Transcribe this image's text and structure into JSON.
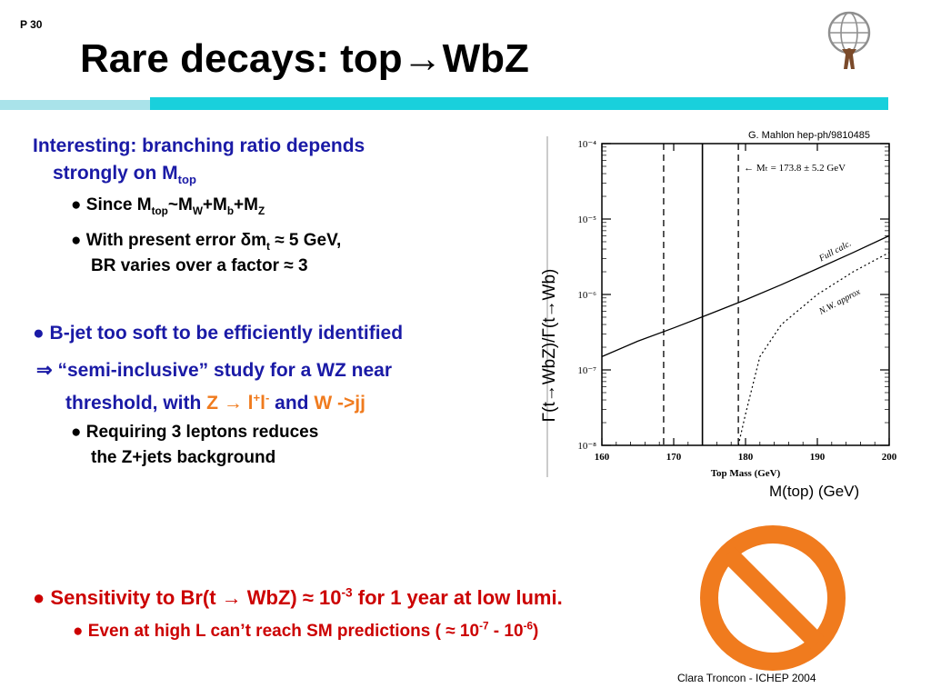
{
  "page_number": "P 30",
  "title": "Rare decays: top→WbZ",
  "bullet1": {
    "line1": "Interesting: branching ratio depends",
    "line2_main": "strongly on M",
    "line2_sub": "top",
    "sub1": {
      "bullet": "●",
      "text": "Since M",
      "sub_top": "top",
      "tilde": "~M",
      "sub_w": "W",
      "plus_b": "+M",
      "sub_b": "b",
      "plus_z": "+M",
      "sub_z": "Z"
    },
    "sub2": {
      "bullet": "●",
      "line1_a": "With present error ",
      "delta": "δ",
      "m": "m",
      "sub_t": "t",
      "line1_b": " ≈ 5 GeV,",
      "line2": "BR varies over a factor ≈ 3"
    }
  },
  "bullet2": {
    "bullet": "●",
    "text": "B-jet too soft to be efficiently identified"
  },
  "bullet3": {
    "arrow": "⇒",
    "line1": " “semi-inclusive” study for a WZ near",
    "line2_a": "threshold, with ",
    "z": "Z",
    "arrow2": " → ",
    "l": "l",
    "plus": "+",
    "l2": "l",
    "minus": "-",
    "and": " and ",
    "w": "W ->jj"
  },
  "sub3": {
    "bullet": "●",
    "line1": "Requiring 3 leptons reduces",
    "line2": "the Z+jets background"
  },
  "bullet4": {
    "bullet": "●",
    "a": " Sensitivity to Br(t ",
    "arrow": "→",
    "b": " WbZ)  ≈ 10",
    "exp": "-3",
    "c": "  for 1 year at low lumi."
  },
  "sub4": {
    "bullet": "●",
    "a": " Even at high L can’t reach SM predictions ( ≈ 10",
    "exp1": "-7",
    "dash": " - ",
    "ten": "10",
    "exp2": "-6",
    "close": ")"
  },
  "plot_credit": "G. Mahlon hep-ph/9810485",
  "xaxis_label": "M(top) (GeV)",
  "yaxis_label": "Γ(t→WbZ)/Γ(t→Wb)",
  "footer": "Clara Troncon - ICHEP 2004",
  "colors": {
    "title_band": "#19d0dc",
    "title_band_light": "#a9e3ea",
    "blue_text": "#1a1aa6",
    "red_text": "#cc0000",
    "orange_text": "#f07b1e",
    "no_sign": "#f07b1e"
  },
  "icons": {
    "logo": "atlas-logo-icon",
    "prohibited": "no-entry-sign-icon"
  },
  "chart_data": {
    "type": "line",
    "title": "",
    "xlabel": "Top Mass (GeV)",
    "ylabel": "",
    "xlim": [
      160,
      200
    ],
    "ylim": [
      1e-08,
      0.0001
    ],
    "log_y": true,
    "x_ticks": [
      "160",
      "170",
      "180",
      "190",
      "200"
    ],
    "y_ticks": [
      "10⁻⁸",
      "10⁻⁷",
      "10⁻⁶",
      "10⁻⁵",
      "10⁻⁴"
    ],
    "mass_annotation": "← Mₜ = 173.8 ± 5.2 GeV",
    "mass_line": 174,
    "mass_band": [
      168.6,
      179
    ],
    "series": [
      {
        "name": "Full calc.",
        "style": "solid",
        "x": [
          160,
          165,
          170,
          175,
          180,
          185,
          190,
          195,
          200
        ],
        "y": [
          1.5e-07,
          2.4e-07,
          3.6e-07,
          5.5e-07,
          8.5e-07,
          1.35e-06,
          2.2e-06,
          3.6e-06,
          6e-06
        ]
      },
      {
        "name": "N.W. approx",
        "style": "dotted",
        "x": [
          179,
          180,
          182,
          185,
          190,
          195,
          200
        ],
        "y": [
          1e-08,
          2.6e-08,
          1.5e-07,
          4e-07,
          1e-06,
          2e-06,
          3.6e-06
        ]
      }
    ]
  }
}
